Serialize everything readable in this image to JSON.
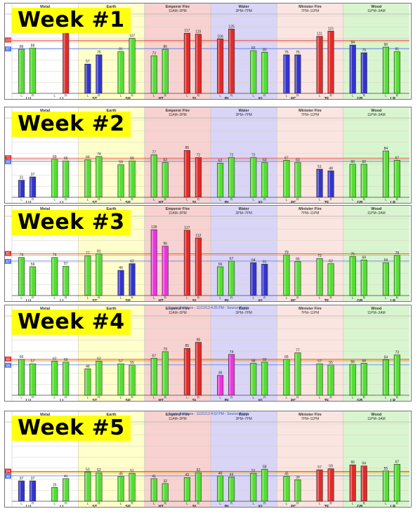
{
  "section_headers": [
    {
      "name": "Metal",
      "hours": "3AM–7AM"
    },
    {
      "name": "Earth",
      "hours": "7AM–11AM"
    },
    {
      "name": "Emperor Fire",
      "hours": "11AM–3PM"
    },
    {
      "name": "Water",
      "hours": "3PM–7PM"
    },
    {
      "name": "Minister Fire",
      "hours": "7PM–11PM"
    },
    {
      "name": "Wood",
      "hours": "11PM–3AM"
    }
  ],
  "meridians": [
    "LU",
    "LI",
    "ST",
    "SP",
    "HT",
    "SI",
    "BL",
    "KI",
    "PC",
    "TE",
    "GB",
    "LR"
  ],
  "side_labels": [
    "L",
    "R"
  ],
  "colors": {
    "metal_bg": "#ffffff",
    "earth_bg": "#ffffcc",
    "emperor_bg": "#f7d2d0",
    "water_bg": "#d9d5f7",
    "minister_bg": "#fbe5e0",
    "wood_bg": "#d8f5cf",
    "green": "#55dd33",
    "red": "#e02a2a",
    "blue": "#3333cc",
    "magenta": "#ee33dd",
    "badge": "#ffff10"
  },
  "chart_data": [
    {
      "type": "bar",
      "title": "Week #1",
      "subtitle": "",
      "categories": [
        "LU",
        "LI",
        "ST",
        "SP",
        "HT",
        "SI",
        "BL",
        "KI",
        "PC",
        "TE",
        "GB",
        "LR"
      ],
      "ylim": [
        0,
        150
      ],
      "mean_value": 103,
      "ref_value": 87,
      "series": [
        {
          "name": "L",
          "values": [
            86,
            0,
            57,
            81,
            73,
            117,
            106,
            83,
            75,
            111,
            94,
            90
          ],
          "colors": [
            "green",
            "red",
            "blue",
            "green",
            "green",
            "red",
            "red",
            "green",
            "blue",
            "red",
            "blue",
            "green"
          ],
          "labels": [
            "86",
            "",
            "57",
            "81",
            "73",
            "117",
            "106",
            "83",
            "75",
            "111",
            "94",
            "90"
          ]
        },
        {
          "name": "R",
          "values": [
            88,
            119,
            75,
            107,
            86,
            115,
            125,
            80,
            75,
            121,
            79,
            81
          ],
          "colors": [
            "green",
            "red",
            "blue",
            "green",
            "green",
            "red",
            "red",
            "green",
            "blue",
            "red",
            "blue",
            "green"
          ],
          "labels": [
            "88",
            "119",
            "75",
            "107",
            "86",
            "115",
            "125",
            "80",
            "75",
            "121",
            "79",
            "81"
          ]
        }
      ]
    },
    {
      "type": "bar",
      "title": "Week #2",
      "subtitle": "",
      "categories": [
        "LU",
        "LI",
        "ST",
        "SP",
        "HT",
        "SI",
        "BL",
        "KI",
        "PC",
        "TE",
        "GB",
        "LR"
      ],
      "ylim": [
        0,
        140
      ],
      "mean_value": 71,
      "ref_value": 65,
      "series": [
        {
          "name": "L",
          "values": [
            31,
            69,
            68,
            59,
            77,
            85,
            62,
            72,
            67,
            51,
            60,
            84
          ],
          "colors": [
            "blue",
            "green",
            "green",
            "green",
            "green",
            "red",
            "green",
            "green",
            "green",
            "blue",
            "green",
            "green"
          ],
          "labels": [
            "31",
            "69",
            "68",
            "59",
            "77",
            "85",
            "62",
            "72",
            "67",
            "51",
            "60",
            "84"
          ]
        },
        {
          "name": "R",
          "values": [
            37,
            66,
            74,
            66,
            63,
            72,
            72,
            63,
            63,
            48,
            60,
            67
          ],
          "colors": [
            "blue",
            "green",
            "green",
            "green",
            "green",
            "red",
            "green",
            "green",
            "green",
            "blue",
            "green",
            "green"
          ],
          "labels": [
            "37",
            "66",
            "74",
            "66",
            "63",
            "72",
            "72",
            "63",
            "63",
            "48",
            "60",
            "67"
          ]
        }
      ]
    },
    {
      "type": "bar",
      "title": "Week #3",
      "subtitle": "",
      "categories": [
        "LU",
        "LI",
        "ST",
        "SP",
        "HT",
        "SI",
        "BL",
        "KI",
        "PC",
        "TE",
        "GB",
        "LR"
      ],
      "ylim": [
        0,
        150
      ],
      "mean_value": 81,
      "ref_value": 67,
      "series": [
        {
          "name": "L",
          "values": [
            74,
            74,
            77,
            49,
            128,
            127,
            56,
            64,
            79,
            72,
            76,
            64
          ],
          "colors": [
            "green",
            "green",
            "green",
            "blue",
            "magenta",
            "red",
            "green",
            "blue",
            "green",
            "green",
            "green",
            "green"
          ],
          "labels": [
            "74",
            "74",
            "77",
            "49",
            "128",
            "127",
            "56",
            "64",
            "79",
            "72",
            "76",
            "64"
          ]
        },
        {
          "name": "R",
          "values": [
            56,
            57,
            81,
            62,
            96,
            112,
            67,
            61,
            66,
            62,
            69,
            78
          ],
          "colors": [
            "green",
            "green",
            "green",
            "blue",
            "magenta",
            "red",
            "green",
            "blue",
            "green",
            "green",
            "green",
            "green"
          ],
          "labels": [
            "56",
            "57",
            "81",
            "62",
            "96",
            "112",
            "67",
            "61",
            "66",
            "62",
            "69",
            "78"
          ]
        }
      ]
    },
    {
      "type": "bar",
      "title": "Week #4",
      "subtitle": "Karole Beddoes - 11/12/13 4:25 PM - Source Points",
      "categories": [
        "LU",
        "LI",
        "ST",
        "SP",
        "HT",
        "SI",
        "BL",
        "KI",
        "PC",
        "TE",
        "GB",
        "LR"
      ],
      "ylim": [
        0,
        140
      ],
      "mean_value": 65,
      "ref_value": 55,
      "series": [
        {
          "name": "L",
          "values": [
            65,
            62,
            48,
            57,
            67,
            85,
            36,
            58,
            65,
            57,
            56,
            64
          ],
          "colors": [
            "green",
            "green",
            "green",
            "green",
            "green",
            "red",
            "magenta",
            "green",
            "green",
            "green",
            "green",
            "green"
          ],
          "labels": [
            "65",
            "62",
            "48",
            "57",
            "67",
            "85",
            "36",
            "58",
            "65",
            "57",
            "56",
            "64"
          ]
        },
        {
          "name": "R",
          "values": [
            57,
            60,
            62,
            55,
            79,
            96,
            74,
            60,
            77,
            55,
            58,
            73
          ],
          "colors": [
            "green",
            "green",
            "green",
            "green",
            "green",
            "red",
            "magenta",
            "green",
            "green",
            "green",
            "green",
            "green"
          ],
          "labels": [
            "57",
            "60",
            "62",
            "55",
            "79",
            "96",
            "74",
            "60",
            "77",
            "55",
            "58",
            "73"
          ]
        }
      ]
    },
    {
      "type": "bar",
      "title": "Week #5",
      "subtitle": "Karole Beddoes - 11/21/13 4:52 PM - Source Points",
      "categories": [
        "LU",
        "LI",
        "ST",
        "SP",
        "HT",
        "SI",
        "BL",
        "KI",
        "PC",
        "TE",
        "GB",
        "LR"
      ],
      "ylim": [
        0,
        140
      ],
      "mean_value": 54,
      "ref_value": 46,
      "series": [
        {
          "name": "L",
          "values": [
            37,
            25,
            53,
            45,
            41,
            43,
            46,
            51,
            45,
            57,
            66,
            55
          ],
          "colors": [
            "blue",
            "green",
            "green",
            "green",
            "green",
            "green",
            "green",
            "green",
            "green",
            "red",
            "red",
            "green"
          ],
          "labels": [
            "37",
            "25",
            "53",
            "45",
            "41",
            "43",
            "46",
            "51",
            "45",
            "57",
            "66",
            "55"
          ]
        },
        {
          "name": "R",
          "values": [
            37,
            41,
            52,
            51,
            32,
            52,
            44,
            58,
            39,
            59,
            64,
            67
          ],
          "colors": [
            "blue",
            "green",
            "green",
            "green",
            "green",
            "green",
            "green",
            "green",
            "green",
            "red",
            "red",
            "green"
          ],
          "labels": [
            "37",
            "41",
            "52",
            "51",
            "32",
            "52",
            "44",
            "58",
            "39",
            "59",
            "64",
            "67"
          ]
        }
      ]
    }
  ]
}
